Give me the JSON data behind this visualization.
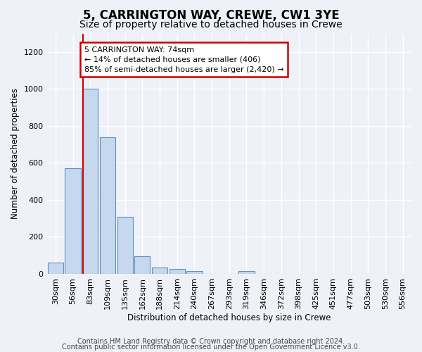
{
  "title": "5, CARRINGTON WAY, CREWE, CW1 3YE",
  "subtitle": "Size of property relative to detached houses in Crewe",
  "xlabel": "Distribution of detached houses by size in Crewe",
  "ylabel": "Number of detached properties",
  "bin_labels": [
    "30sqm",
    "56sqm",
    "83sqm",
    "109sqm",
    "135sqm",
    "162sqm",
    "188sqm",
    "214sqm",
    "240sqm",
    "267sqm",
    "293sqm",
    "319sqm",
    "346sqm",
    "372sqm",
    "398sqm",
    "425sqm",
    "451sqm",
    "477sqm",
    "503sqm",
    "530sqm",
    "556sqm"
  ],
  "bar_values": [
    60,
    570,
    1000,
    740,
    310,
    95,
    35,
    25,
    15,
    0,
    0,
    15,
    0,
    0,
    0,
    0,
    0,
    0,
    0,
    0,
    0
  ],
  "bar_color": "#c5d8ed",
  "bar_edge_color": "#6090bb",
  "red_line_x": 1.57,
  "annotation_line1": "5 CARRINGTON WAY: 74sqm",
  "annotation_line2": "← 14% of detached houses are smaller (406)",
  "annotation_line3": "85% of semi-detached houses are larger (2,420) →",
  "annotation_box_color": "#ffffff",
  "annotation_box_edge_color": "#cc0000",
  "ylim": [
    0,
    1300
  ],
  "yticks": [
    0,
    200,
    400,
    600,
    800,
    1000,
    1200
  ],
  "footer_line1": "Contains HM Land Registry data © Crown copyright and database right 2024.",
  "footer_line2": "Contains public sector information licensed under the Open Government Licence v3.0.",
  "background_color": "#eef2f8",
  "plot_bg_color": "#eef2f8",
  "grid_color": "#ffffff",
  "title_fontsize": 12,
  "subtitle_fontsize": 10,
  "axis_label_fontsize": 8.5,
  "tick_fontsize": 8,
  "annotation_fontsize": 8,
  "footer_fontsize": 7
}
